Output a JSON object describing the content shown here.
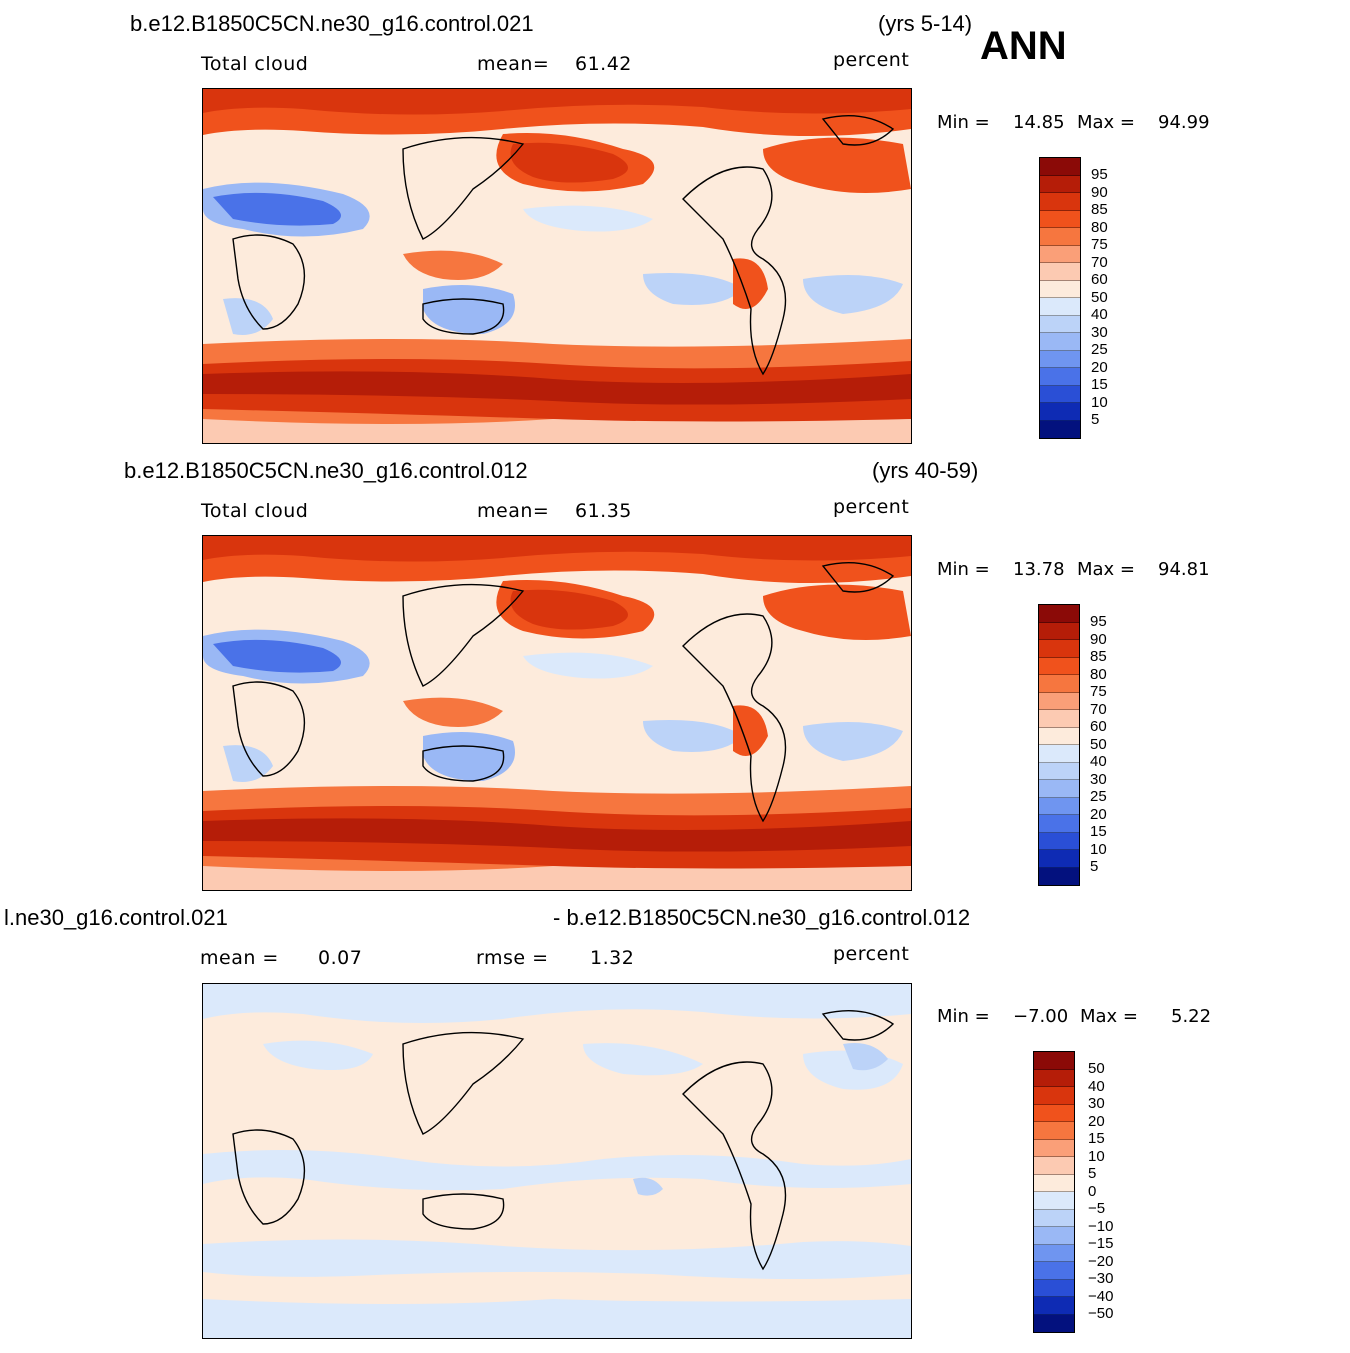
{
  "season": "ANN",
  "panels": [
    {
      "case": "b.e12.B1850C5CN.ne30_g16.control.021",
      "years": "(yrs 5-14)",
      "field": "Total cloud",
      "stat1_label": "mean=",
      "stat1_value": "61.42",
      "stat2_label": "",
      "stat2_value": "",
      "units": "percent",
      "min_label": "Min  =",
      "min_value": "14.85",
      "max_label": "Max  =",
      "max_value": "94.99",
      "levels": [
        "95",
        "90",
        "85",
        "80",
        "75",
        "70",
        "60",
        "50",
        "40",
        "30",
        "25",
        "20",
        "15",
        "10",
        "5"
      ]
    },
    {
      "case": "b.e12.B1850C5CN.ne30_g16.control.012",
      "years": "(yrs 40-59)",
      "field": "Total cloud",
      "stat1_label": "mean=",
      "stat1_value": "61.35",
      "stat2_label": "",
      "stat2_value": "",
      "units": "percent",
      "min_label": "Min  =",
      "min_value": "13.78",
      "max_label": "Max  =",
      "max_value": "94.81",
      "levels": [
        "95",
        "90",
        "85",
        "80",
        "75",
        "70",
        "60",
        "50",
        "40",
        "30",
        "25",
        "20",
        "15",
        "10",
        "5"
      ]
    },
    {
      "case": "l.ne30_g16.control.021",
      "years": "- b.e12.B1850C5CN.ne30_g16.control.012",
      "field": "",
      "stat1_label": "mean  =",
      "stat1_value": "0.07",
      "stat2_label": "rmse  =",
      "stat2_value": "1.32",
      "units": "percent",
      "min_label": "Min  =",
      "min_value": "−7.00",
      "max_label": "Max  =",
      "max_value": "5.22",
      "levels": [
        "50",
        "40",
        "30",
        "20",
        "15",
        "10",
        "5",
        "0",
        "−5",
        "−10",
        "−15",
        "−20",
        "−30",
        "−40",
        "−50"
      ]
    }
  ],
  "colors": {
    "abs_scale": [
      "#8b0a07",
      "#b51d08",
      "#d9350d",
      "#f0521c",
      "#f6763f",
      "#fa9f78",
      "#fccab2",
      "#fdebdc",
      "#dbe9fb",
      "#bcd3f8",
      "#9ab8f5",
      "#6f95f0",
      "#4a72e8",
      "#2a4fd6",
      "#0e2bb4",
      "#03117e"
    ],
    "diff_scale": [
      "#8b0a07",
      "#b51d08",
      "#d9350d",
      "#f0521c",
      "#f6763f",
      "#fa9f78",
      "#fccab2",
      "#fdebdc",
      "#dbe9fb",
      "#bcd3f8",
      "#9ab8f5",
      "#6f95f0",
      "#4a72e8",
      "#2a4fd6",
      "#0e2bb4",
      "#03117e"
    ]
  }
}
